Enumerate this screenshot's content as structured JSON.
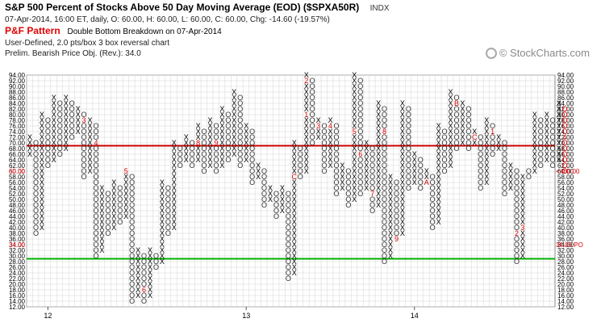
{
  "header": {
    "title": "S&P 500 Percent of Stocks Above 50 Day Moving Average (EOD) ($SPXA50R)",
    "exchange": "INDX",
    "ohlc_line": "07-Apr-2014, 16:00 ET, daily, O: 60.00, H: 60.00, L: 60.00, C: 60.00, Chg: -14.60 (-19.57%)",
    "pf_pattern_label": "P&F Pattern",
    "pf_pattern_text": "Double Bottom Breakdown on 07-Apr-2014",
    "chart_settings": "User-Defined, 2.0 pts/box 3 box reversal chart",
    "price_objective": "Prelim. Bearish Price Obj. (Rev.): 34.0"
  },
  "copyright": "© StockCharts.com",
  "colors": {
    "x_mark": "#000000",
    "o_mark": "#333333",
    "month_mark": "#d00000",
    "resistance": "#cc0000",
    "support": "#00b000",
    "grid": "#d4d4d4",
    "current_price": "#e00000"
  },
  "chart_data": {
    "type": "point-and-figure",
    "box_size": 2.0,
    "reversal": 3,
    "ylim": [
      12,
      94
    ],
    "y_ticks": [
      "94.00",
      "92.00",
      "90.00",
      "88.00",
      "86.00",
      "84.00",
      "82.00",
      "80.00",
      "78.00",
      "76.00",
      "74.00",
      "72.00",
      "70.00",
      "68.00",
      "66.00",
      "64.00",
      "62.00",
      "60.00",
      "58.00",
      "56.00",
      "54.00",
      "52.00",
      "50.00",
      "48.00",
      "46.00",
      "44.00",
      "42.00",
      "40.00",
      "38.00",
      "36.00",
      "34.00",
      "32.00",
      "30.00",
      "28.00",
      "26.00",
      "24.00",
      "22.00",
      "20.00",
      "18.00",
      "16.00",
      "14.00",
      "12.00"
    ],
    "x_year_labels": [
      {
        "label": "12",
        "column": 3
      },
      {
        "label": "13",
        "column": 36
      },
      {
        "label": "14",
        "column": 64
      }
    ],
    "columns": [
      {
        "t": "X",
        "lo": 66,
        "hi": 72
      },
      {
        "t": "O",
        "lo": 38,
        "hi": 70
      },
      {
        "t": "X",
        "lo": 40,
        "hi": 80
      },
      {
        "t": "O",
        "lo": 62,
        "hi": 78
      },
      {
        "t": "X",
        "lo": 64,
        "hi": 86
      },
      {
        "t": "O",
        "lo": 66,
        "hi": 84
      },
      {
        "t": "X",
        "lo": 68,
        "hi": 86
      },
      {
        "t": "O",
        "lo": 72,
        "hi": 84
      },
      {
        "t": "X",
        "lo": 74,
        "hi": 82
      },
      {
        "t": "O",
        "lo": 58,
        "hi": 80,
        "m": {
          "3": 78
        }
      },
      {
        "t": "X",
        "lo": 60,
        "hi": 78
      },
      {
        "t": "O",
        "lo": 30,
        "hi": 76,
        "m": {
          "4": 70
        }
      },
      {
        "t": "X",
        "lo": 32,
        "hi": 54
      },
      {
        "t": "O",
        "lo": 38,
        "hi": 52
      },
      {
        "t": "X",
        "lo": 40,
        "hi": 56
      },
      {
        "t": "O",
        "lo": 42,
        "hi": 54
      },
      {
        "t": "X",
        "lo": 44,
        "hi": 60,
        "m": {
          "5": 60
        }
      },
      {
        "t": "O",
        "lo": 14,
        "hi": 58
      },
      {
        "t": "X",
        "lo": 16,
        "hi": 32
      },
      {
        "t": "O",
        "lo": 14,
        "hi": 30,
        "m": {
          "6": 18
        }
      },
      {
        "t": "X",
        "lo": 16,
        "hi": 32
      },
      {
        "t": "O",
        "lo": 26,
        "hi": 30
      },
      {
        "t": "X",
        "lo": 28,
        "hi": 56
      },
      {
        "t": "O",
        "lo": 38,
        "hi": 54
      },
      {
        "t": "X",
        "lo": 40,
        "hi": 70
      },
      {
        "t": "O",
        "lo": 62,
        "hi": 68
      },
      {
        "t": "X",
        "lo": 64,
        "hi": 72
      },
      {
        "t": "O",
        "lo": 62,
        "hi": 70
      },
      {
        "t": "X",
        "lo": 64,
        "hi": 76,
        "m": {
          "8": 70
        }
      },
      {
        "t": "O",
        "lo": 60,
        "hi": 74
      },
      {
        "t": "X",
        "lo": 62,
        "hi": 78
      },
      {
        "t": "O",
        "lo": 60,
        "hi": 76,
        "m": {
          "9": 70
        }
      },
      {
        "t": "X",
        "lo": 62,
        "hi": 82
      },
      {
        "t": "O",
        "lo": 64,
        "hi": 80
      },
      {
        "t": "X",
        "lo": 66,
        "hi": 88
      },
      {
        "t": "O",
        "lo": 62,
        "hi": 86
      },
      {
        "t": "X",
        "lo": 64,
        "hi": 76
      },
      {
        "t": "O",
        "lo": 56,
        "hi": 74
      },
      {
        "t": "X",
        "lo": 58,
        "hi": 62
      },
      {
        "t": "O",
        "lo": 48,
        "hi": 60
      },
      {
        "t": "X",
        "lo": 50,
        "hi": 54
      },
      {
        "t": "O",
        "lo": 44,
        "hi": 52
      },
      {
        "t": "X",
        "lo": 46,
        "hi": 54
      },
      {
        "t": "O",
        "lo": 22,
        "hi": 52
      },
      {
        "t": "X",
        "lo": 24,
        "hi": 70,
        "m": {
          "C": 58
        }
      },
      {
        "t": "O",
        "lo": 58,
        "hi": 68
      },
      {
        "t": "X",
        "lo": 60,
        "hi": 94,
        "m": {
          "1": 80,
          "2": 92
        }
      },
      {
        "t": "O",
        "lo": 70,
        "hi": 92
      },
      {
        "t": "X",
        "lo": 72,
        "hi": 78,
        "m": {
          "3": 76
        }
      },
      {
        "t": "O",
        "lo": 60,
        "hi": 76
      },
      {
        "t": "X",
        "lo": 62,
        "hi": 78,
        "m": {
          "4": 76
        }
      },
      {
        "t": "O",
        "lo": 52,
        "hi": 76
      },
      {
        "t": "X",
        "lo": 54,
        "hi": 62
      },
      {
        "t": "O",
        "lo": 48,
        "hi": 60
      },
      {
        "t": "X",
        "lo": 50,
        "hi": 94,
        "m": {
          "5": 74
        }
      },
      {
        "t": "O",
        "lo": 52,
        "hi": 92,
        "m": {
          "6": 66
        }
      },
      {
        "t": "X",
        "lo": 54,
        "hi": 70
      },
      {
        "t": "O",
        "lo": 46,
        "hi": 68,
        "m": {
          "7": 52
        }
      },
      {
        "t": "X",
        "lo": 48,
        "hi": 84
      },
      {
        "t": "O",
        "lo": 28,
        "hi": 82,
        "m": {
          "8": 74
        }
      },
      {
        "t": "X",
        "lo": 30,
        "hi": 58
      },
      {
        "t": "O",
        "lo": 36,
        "hi": 56,
        "m": {
          "9": 36
        }
      },
      {
        "t": "X",
        "lo": 38,
        "hi": 84
      },
      {
        "t": "O",
        "lo": 54,
        "hi": 82
      },
      {
        "t": "X",
        "lo": 56,
        "hi": 66
      },
      {
        "t": "O",
        "lo": 54,
        "hi": 64
      },
      {
        "t": "X",
        "lo": 56,
        "hi": 60,
        "m": {
          "A": 56
        }
      },
      {
        "t": "O",
        "lo": 40,
        "hi": 58
      },
      {
        "t": "X",
        "lo": 42,
        "hi": 76
      },
      {
        "t": "O",
        "lo": 60,
        "hi": 74
      },
      {
        "t": "X",
        "lo": 62,
        "hi": 88
      },
      {
        "t": "O",
        "lo": 68,
        "hi": 86,
        "m": {
          "B": 84
        }
      },
      {
        "t": "X",
        "lo": 70,
        "hi": 84
      },
      {
        "t": "O",
        "lo": 68,
        "hi": 82
      },
      {
        "t": "X",
        "lo": 70,
        "hi": 74,
        "m": {
          "C": 72
        }
      },
      {
        "t": "O",
        "lo": 54,
        "hi": 72
      },
      {
        "t": "X",
        "lo": 56,
        "hi": 78
      },
      {
        "t": "O",
        "lo": 66,
        "hi": 76,
        "m": {
          "1": 74
        }
      },
      {
        "t": "X",
        "lo": 68,
        "hi": 72
      },
      {
        "t": "O",
        "lo": 52,
        "hi": 70
      },
      {
        "t": "X",
        "lo": 54,
        "hi": 62
      },
      {
        "t": "O",
        "lo": 28,
        "hi": 60,
        "m": {
          "2": 38
        }
      },
      {
        "t": "X",
        "lo": 30,
        "hi": 58,
        "m": {
          "3": 40
        }
      },
      {
        "t": "O",
        "lo": 58,
        "hi": 60
      },
      {
        "t": "X",
        "lo": 60,
        "hi": 80
      },
      {
        "t": "O",
        "lo": 62,
        "hi": 78
      },
      {
        "t": "X",
        "lo": 64,
        "hi": 80
      },
      {
        "t": "O",
        "lo": 62,
        "hi": 78
      },
      {
        "t": "X",
        "lo": 64,
        "hi": 84
      },
      {
        "t": "O",
        "lo": 60,
        "hi": 82,
        "m": {
          "4": 72
        }
      }
    ],
    "lines": [
      {
        "name": "resistance",
        "value": 69
      },
      {
        "name": "support",
        "value": 29
      }
    ],
    "right_labels": [
      {
        "text": "<<60.00",
        "value": 60,
        "color": "current_price"
      },
      {
        "text": "34.00 PO",
        "value": 34,
        "color": "current_price"
      }
    ],
    "left_labels": [
      {
        "text": "60.00",
        "value": 60,
        "color": "current_price"
      },
      {
        "text": "34.00",
        "value": 34,
        "color": "current_price"
      }
    ]
  }
}
